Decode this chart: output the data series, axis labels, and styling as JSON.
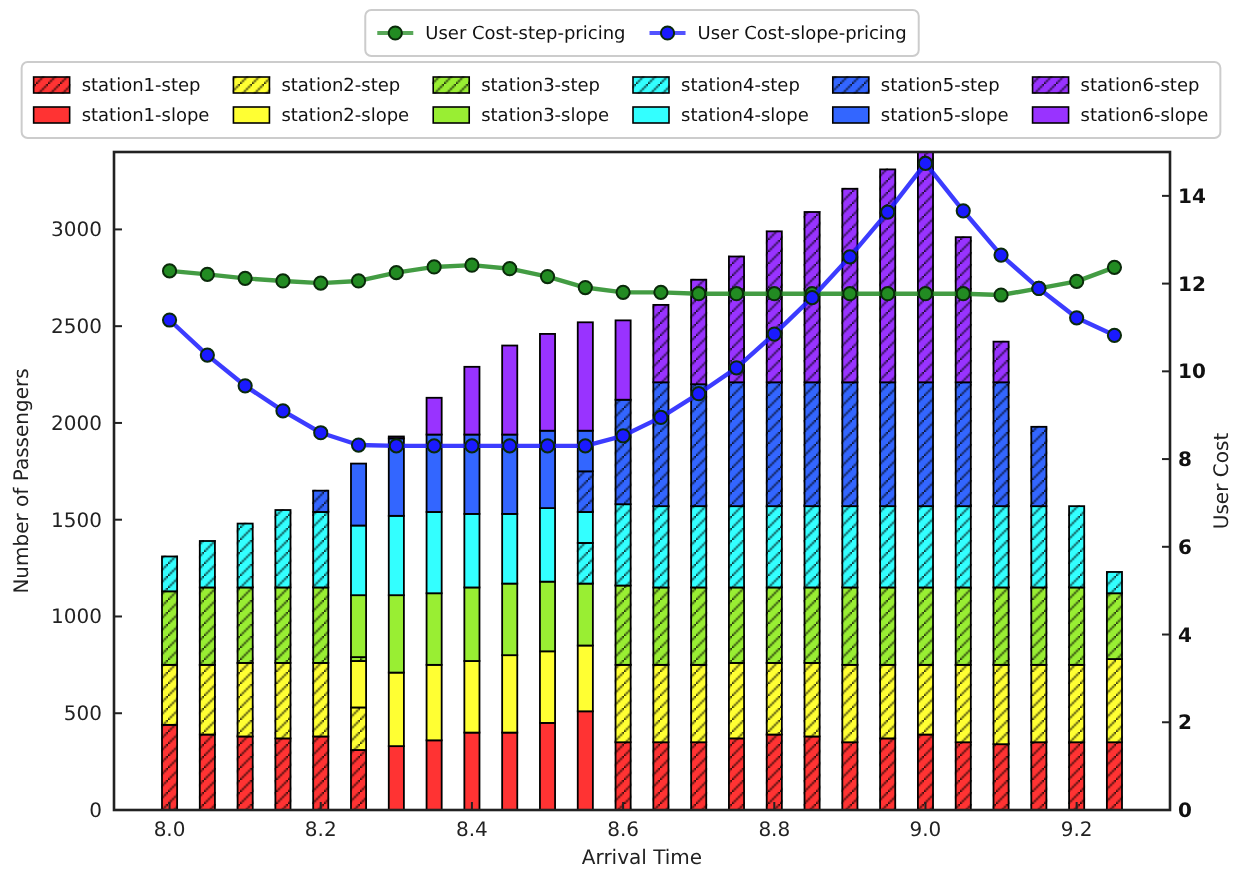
{
  "chart_data": {
    "type": "bar",
    "stacked": true,
    "x": [
      8.0,
      8.05,
      8.1,
      8.15,
      8.2,
      8.25,
      8.3,
      8.35,
      8.4,
      8.45,
      8.5,
      8.55,
      8.6,
      8.65,
      8.7,
      8.75,
      8.8,
      8.85,
      8.9,
      8.95,
      9.0,
      9.05,
      9.1,
      9.15,
      9.2,
      9.25
    ],
    "xlim": [
      7.9265,
      9.3235
    ],
    "xticks": [
      {
        "value": 8,
        "label": "8.0"
      },
      8.2,
      8.4,
      8.6,
      8.8,
      {
        "value": 9,
        "label": "9.0"
      },
      9.2
    ],
    "ylim": [
      0,
      3400
    ],
    "yticks": [
      0,
      500,
      1000,
      1500,
      2000,
      2500,
      3000
    ],
    "y2lim": [
      0,
      15
    ],
    "y2ticks": [
      0,
      2,
      4,
      6,
      8,
      10,
      12,
      14
    ],
    "xlabel": "Arrival Time",
    "ylabel": "Number of Passengers",
    "y2label": "User Cost",
    "legend": "top",
    "marker": "circle",
    "line_style": "solid",
    "series": [
      {
        "name": "station1-step",
        "color": "#ff3333",
        "values": [
          440,
          390,
          380,
          370,
          380,
          310,
          null,
          null,
          null,
          null,
          null,
          null,
          350,
          350,
          350,
          370,
          390,
          380,
          350,
          370,
          390,
          350,
          340,
          350,
          350,
          350
        ]
      },
      {
        "name": "station1-slope",
        "color": "#ff3333",
        "values": [
          null,
          null,
          null,
          null,
          null,
          null,
          330,
          360,
          400,
          400,
          450,
          510,
          null,
          null,
          null,
          null,
          null,
          null,
          null,
          null,
          null,
          null,
          null,
          null,
          null,
          null
        ]
      },
      {
        "name": "station2-step",
        "color": "#ffff33",
        "values": [
          310,
          360,
          380,
          390,
          380,
          220,
          null,
          null,
          null,
          null,
          null,
          null,
          400,
          400,
          400,
          390,
          370,
          380,
          400,
          380,
          360,
          400,
          410,
          400,
          400,
          430
        ]
      },
      {
        "name": "station2-slope",
        "color": "#ffff33",
        "values": [
          null,
          null,
          null,
          null,
          null,
          240,
          380,
          390,
          370,
          400,
          370,
          340,
          null,
          null,
          null,
          null,
          null,
          null,
          null,
          null,
          null,
          null,
          null,
          null,
          null,
          null
        ]
      },
      {
        "name": "station3-step",
        "color": "#99ee33",
        "values": [
          380,
          400,
          390,
          390,
          390,
          20,
          null,
          null,
          null,
          null,
          null,
          null,
          410,
          400,
          400,
          390,
          390,
          390,
          400,
          400,
          400,
          400,
          400,
          400,
          400,
          340
        ]
      },
      {
        "name": "station3-slope",
        "color": "#99ee33",
        "values": [
          null,
          null,
          null,
          null,
          null,
          320,
          400,
          370,
          380,
          370,
          360,
          320,
          null,
          null,
          null,
          null,
          null,
          null,
          null,
          null,
          null,
          null,
          null,
          null,
          null,
          null
        ]
      },
      {
        "name": "station4-step",
        "color": "#33ffff",
        "values": [
          180,
          240,
          330,
          400,
          390,
          null,
          null,
          null,
          null,
          null,
          null,
          210,
          420,
          420,
          420,
          420,
          420,
          420,
          420,
          420,
          420,
          420,
          420,
          420,
          420,
          110
        ]
      },
      {
        "name": "station4-slope",
        "color": "#33ffff",
        "values": [
          null,
          null,
          null,
          null,
          null,
          360,
          410,
          420,
          380,
          360,
          380,
          160,
          null,
          null,
          null,
          null,
          null,
          null,
          null,
          null,
          null,
          null,
          null,
          null,
          null,
          null
        ]
      },
      {
        "name": "station5-step",
        "color": "#3366ff",
        "values": [
          null,
          null,
          null,
          null,
          110,
          null,
          null,
          null,
          null,
          null,
          null,
          210,
          540,
          640,
          630,
          640,
          640,
          640,
          640,
          640,
          640,
          640,
          640,
          410,
          null,
          null
        ]
      },
      {
        "name": "station5-slope",
        "color": "#3366ff",
        "values": [
          null,
          null,
          null,
          null,
          null,
          320,
          400,
          400,
          410,
          410,
          400,
          210,
          null,
          null,
          null,
          null,
          null,
          null,
          null,
          null,
          null,
          null,
          null,
          null,
          null,
          null
        ]
      },
      {
        "name": "station6-step",
        "color": "#9933ff",
        "values": [
          null,
          null,
          null,
          null,
          null,
          null,
          null,
          null,
          null,
          null,
          null,
          null,
          null,
          400,
          540,
          650,
          780,
          880,
          1000,
          1100,
          1190,
          750,
          210,
          null,
          null,
          null
        ]
      },
      {
        "name": "station6-slope",
        "color": "#9933ff",
        "values": [
          null,
          null,
          null,
          null,
          null,
          null,
          10,
          190,
          350,
          460,
          500,
          560,
          410,
          null,
          null,
          null,
          null,
          null,
          null,
          null,
          null,
          null,
          null,
          null,
          null,
          null
        ]
      },
      {
        "name": "User Cost-step-pricing",
        "type": "line",
        "axis": "y2",
        "color": "#228b22",
        "values": [
          12.29,
          12.21,
          12.12,
          12.06,
          12.01,
          12.06,
          12.25,
          12.38,
          12.42,
          12.34,
          12.16,
          11.91,
          11.8,
          11.8,
          11.77,
          11.77,
          11.77,
          11.77,
          11.77,
          11.77,
          11.77,
          11.77,
          11.74,
          11.89,
          12.05,
          12.37
        ]
      },
      {
        "name": "User Cost-slope-pricing",
        "type": "line",
        "axis": "y2",
        "color": "#1a1aff",
        "values": [
          11.17,
          10.37,
          9.67,
          9.1,
          8.6,
          8.32,
          8.3,
          8.3,
          8.3,
          8.3,
          8.3,
          8.3,
          8.53,
          8.95,
          9.49,
          10.08,
          10.85,
          11.68,
          12.61,
          13.63,
          14.74,
          13.66,
          12.65,
          11.89,
          11.22,
          10.82
        ]
      }
    ]
  }
}
